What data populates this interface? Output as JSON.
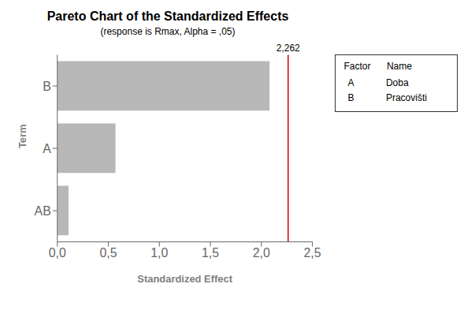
{
  "chart_data": {
    "type": "bar",
    "orientation": "horizontal",
    "title": "Pareto Chart of the Standardized Effects",
    "subtitle": "(response is Rmax, Alpha = ,05)",
    "xlabel": "Standardized Effect",
    "ylabel": "Term",
    "categories": [
      "AB",
      "A",
      "B"
    ],
    "values": [
      0.11,
      0.57,
      2.08
    ],
    "color": "#b8b8b8",
    "xlim": [
      0,
      2.5
    ],
    "xticks": [
      {
        "value": 0.0,
        "label": "0,0"
      },
      {
        "value": 0.5,
        "label": "0,5"
      },
      {
        "value": 1.0,
        "label": "1,0"
      },
      {
        "value": 1.5,
        "label": "1,5"
      },
      {
        "value": 2.0,
        "label": "2,0"
      },
      {
        "value": 2.5,
        "label": "2,5"
      }
    ],
    "grid": false,
    "annotations": [
      {
        "x": 2.262,
        "label": "2,262",
        "color": "#cc0000"
      }
    ],
    "factor_table": {
      "header": [
        "Factor",
        "Name"
      ],
      "rows": [
        [
          "A",
          "Doba"
        ],
        [
          "B",
          "Pracovišti"
        ]
      ]
    }
  }
}
